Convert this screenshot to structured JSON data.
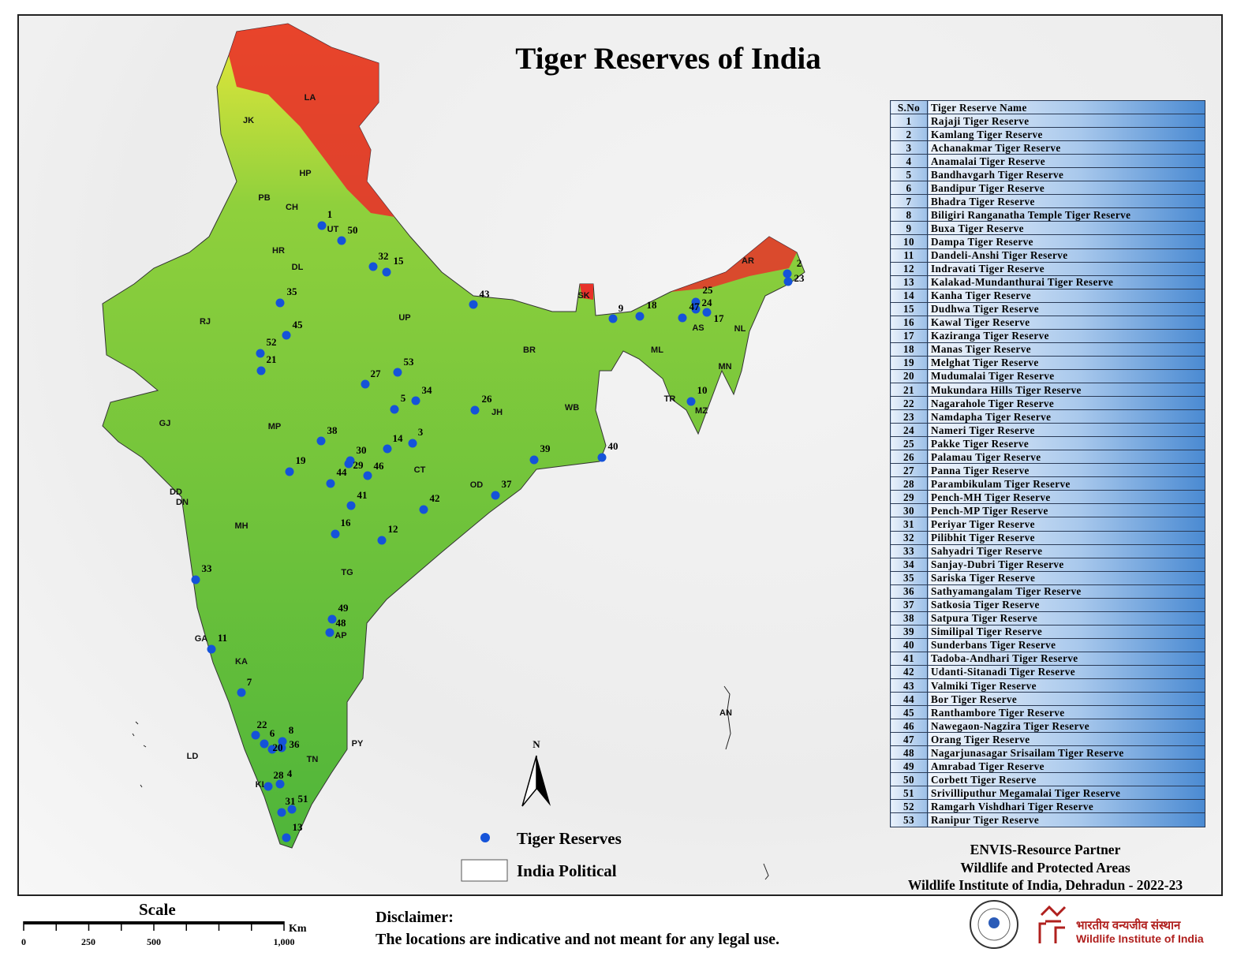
{
  "title": "Tiger Reserves of India",
  "colors": {
    "land_low": "#5fbf3a",
    "land_mid": "#d9e83a",
    "land_high": "#e8322a",
    "reserve_dot": "#1553d9",
    "table_header": "#4a8ad2"
  },
  "table": {
    "headers": [
      "S.No",
      "Tiger Reserve Name"
    ],
    "rows": [
      [
        "1",
        "Rajaji Tiger Reserve"
      ],
      [
        "2",
        "Kamlang Tiger Reserve"
      ],
      [
        "3",
        "Achanakmar Tiger Reserve"
      ],
      [
        "4",
        "Anamalai Tiger Reserve"
      ],
      [
        "5",
        "Bandhavgarh Tiger Reserve"
      ],
      [
        "6",
        "Bandipur Tiger Reserve"
      ],
      [
        "7",
        "Bhadra Tiger Reserve"
      ],
      [
        "8",
        "Biligiri Ranganatha Temple Tiger Reserve"
      ],
      [
        "9",
        "Buxa Tiger Reserve"
      ],
      [
        "10",
        "Dampa Tiger Reserve"
      ],
      [
        "11",
        "Dandeli-Anshi Tiger Reserve"
      ],
      [
        "12",
        "Indravati Tiger Reserve"
      ],
      [
        "13",
        "Kalakad-Mundanthurai Tiger Reserve"
      ],
      [
        "14",
        "Kanha Tiger Reserve"
      ],
      [
        "15",
        "Dudhwa Tiger Reserve"
      ],
      [
        "16",
        "Kawal Tiger Reserve"
      ],
      [
        "17",
        "Kaziranga Tiger Reserve"
      ],
      [
        "18",
        "Manas Tiger Reserve"
      ],
      [
        "19",
        "Melghat Tiger Reserve"
      ],
      [
        "20",
        "Mudumalai Tiger Reserve"
      ],
      [
        "21",
        "Mukundara Hills Tiger Reserve"
      ],
      [
        "22",
        "Nagarahole Tiger Reserve"
      ],
      [
        "23",
        "Namdapha Tiger Reserve"
      ],
      [
        "24",
        "Nameri Tiger Reserve"
      ],
      [
        "25",
        "Pakke Tiger Reserve"
      ],
      [
        "26",
        "Palamau Tiger Reserve"
      ],
      [
        "27",
        "Panna Tiger Reserve"
      ],
      [
        "28",
        "Parambikulam Tiger Reserve"
      ],
      [
        "29",
        "Pench-MH Tiger Reserve"
      ],
      [
        "30",
        "Pench-MP Tiger Reserve"
      ],
      [
        "31",
        "Periyar Tiger Reserve"
      ],
      [
        "32",
        "Pilibhit Tiger Reserve"
      ],
      [
        "33",
        "Sahyadri Tiger Reserve"
      ],
      [
        "34",
        "Sanjay-Dubri Tiger Reserve"
      ],
      [
        "35",
        "Sariska Tiger Reserve"
      ],
      [
        "36",
        "Sathyamangalam Tiger Reserve"
      ],
      [
        "37",
        "Satkosia Tiger Reserve"
      ],
      [
        "38",
        "Satpura Tiger Reserve"
      ],
      [
        "39",
        "Similipal Tiger Reserve"
      ],
      [
        "40",
        "Sunderbans Tiger Reserve"
      ],
      [
        "41",
        "Tadoba-Andhari Tiger Reserve"
      ],
      [
        "42",
        "Udanti-Sitanadi Tiger Reserve"
      ],
      [
        "43",
        "Valmiki Tiger Reserve"
      ],
      [
        "44",
        "Bor Tiger Reserve"
      ],
      [
        "45",
        "Ranthambore Tiger Reserve"
      ],
      [
        "46",
        "Nawegaon-Nagzira Tiger Reserve"
      ],
      [
        "47",
        "Orang Tiger Reserve"
      ],
      [
        "48",
        "Nagarjunasagar Srisailam Tiger Reserve"
      ],
      [
        "49",
        "Amrabad Tiger Reserve"
      ],
      [
        "50",
        "Corbett Tiger Reserve"
      ],
      [
        "51",
        "Srivilliputhur Megamalai Tiger Reserve"
      ],
      [
        "52",
        "Ramgarh Vishdhari Tiger Reserve"
      ],
      [
        "53",
        "Ranipur Tiger Reserve"
      ]
    ]
  },
  "state_labels": [
    "LA",
    "JK",
    "HP",
    "PB",
    "CH",
    "UT",
    "HR",
    "DL",
    "RJ",
    "UP",
    "BR",
    "SK",
    "AR",
    "AS",
    "NL",
    "ML",
    "MN",
    "TR",
    "MZ",
    "WB",
    "JH",
    "MP",
    "CT",
    "GJ",
    "OD",
    "DD",
    "DN",
    "MH",
    "TG",
    "GA",
    "AP",
    "KA",
    "TN",
    "PY",
    "KL",
    "LD",
    "AN"
  ],
  "legend": {
    "items": [
      {
        "label": "Tiger Reserves",
        "symbol": "blue-dot"
      },
      {
        "label": "India Political",
        "symbol": "white-box"
      }
    ],
    "north": "N"
  },
  "credits": [
    "ENVIS-Resource Partner",
    "Wildlife and Protected Areas",
    "Wildlife Institute of India, Dehradun - 2022-23"
  ],
  "scale": {
    "title": "Scale",
    "unit": "Km",
    "ticks": [
      "0",
      "250",
      "500",
      "1,000"
    ]
  },
  "disclaimer": {
    "heading": "Disclaimer:",
    "text": "The locations are indicative and not meant for any legal use."
  },
  "logos": {
    "wii_hindi": "भारतीय वन्यजीव संस्थान",
    "wii_english": "Wildlife Institute of India",
    "envis_seal": "ENVIS"
  }
}
